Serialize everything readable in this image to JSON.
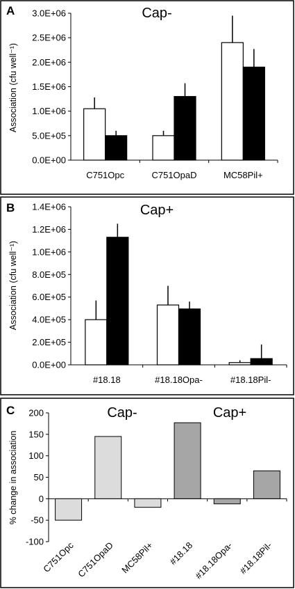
{
  "chart_data": [
    {
      "type": "bar",
      "panel": "A",
      "title": "Cap-",
      "ylabel": "Association (cfu well⁻¹)",
      "categories": [
        "C751Opc",
        "C751OpaD",
        "MC58Pil+"
      ],
      "ylim": [
        0,
        3000000
      ],
      "yticks": [
        "0.0E+00",
        "5.0E+05",
        "1.0E+06",
        "1.5E+06",
        "2.0E+06",
        "2.5E+06",
        "3.0E+06"
      ],
      "series": [
        {
          "color": "#ffffff",
          "values": [
            1050000,
            500000,
            2400000
          ],
          "errors": [
            230000,
            100000,
            550000
          ]
        },
        {
          "color": "#000000",
          "values": [
            500000,
            1300000,
            1900000
          ],
          "errors": [
            100000,
            270000,
            370000
          ]
        }
      ]
    },
    {
      "type": "bar",
      "panel": "B",
      "title": "Cap+",
      "ylabel": "Association (cfu well⁻¹)",
      "categories": [
        "#18.18",
        "#18.18Opa-",
        "#18.18Pil-"
      ],
      "ylim": [
        0,
        1400000
      ],
      "yticks": [
        "0.0E+00",
        "2.0E+05",
        "4.0E+05",
        "6.0E+05",
        "8.0E+05",
        "1.0E+06",
        "1.2E+06",
        "1.4E+06"
      ],
      "series": [
        {
          "color": "#ffffff",
          "values": [
            400000,
            530000,
            20000
          ],
          "errors": [
            170000,
            170000,
            20000
          ]
        },
        {
          "color": "#000000",
          "values": [
            1130000,
            495000,
            55000
          ],
          "errors": [
            120000,
            65000,
            125000
          ]
        }
      ]
    },
    {
      "type": "bar",
      "panel": "C",
      "ylabel": "% change in association",
      "categories": [
        "C751Opc",
        "C751OpaD",
        "MC58Pil+",
        "#18.18",
        "#18.18Opa-",
        "#18.18Pil-"
      ],
      "values": [
        -50,
        145,
        -20,
        177,
        -12,
        65
      ],
      "colors": [
        "#dcdcdc",
        "#dcdcdc",
        "#dcdcdc",
        "#a6a6a6",
        "#a6a6a6",
        "#a6a6a6"
      ],
      "ylim": [
        -100,
        200
      ],
      "yticks": [
        "-100",
        "-50",
        "0",
        "50",
        "100",
        "150",
        "200"
      ],
      "group_labels": [
        "Cap-",
        "Cap+"
      ]
    }
  ]
}
